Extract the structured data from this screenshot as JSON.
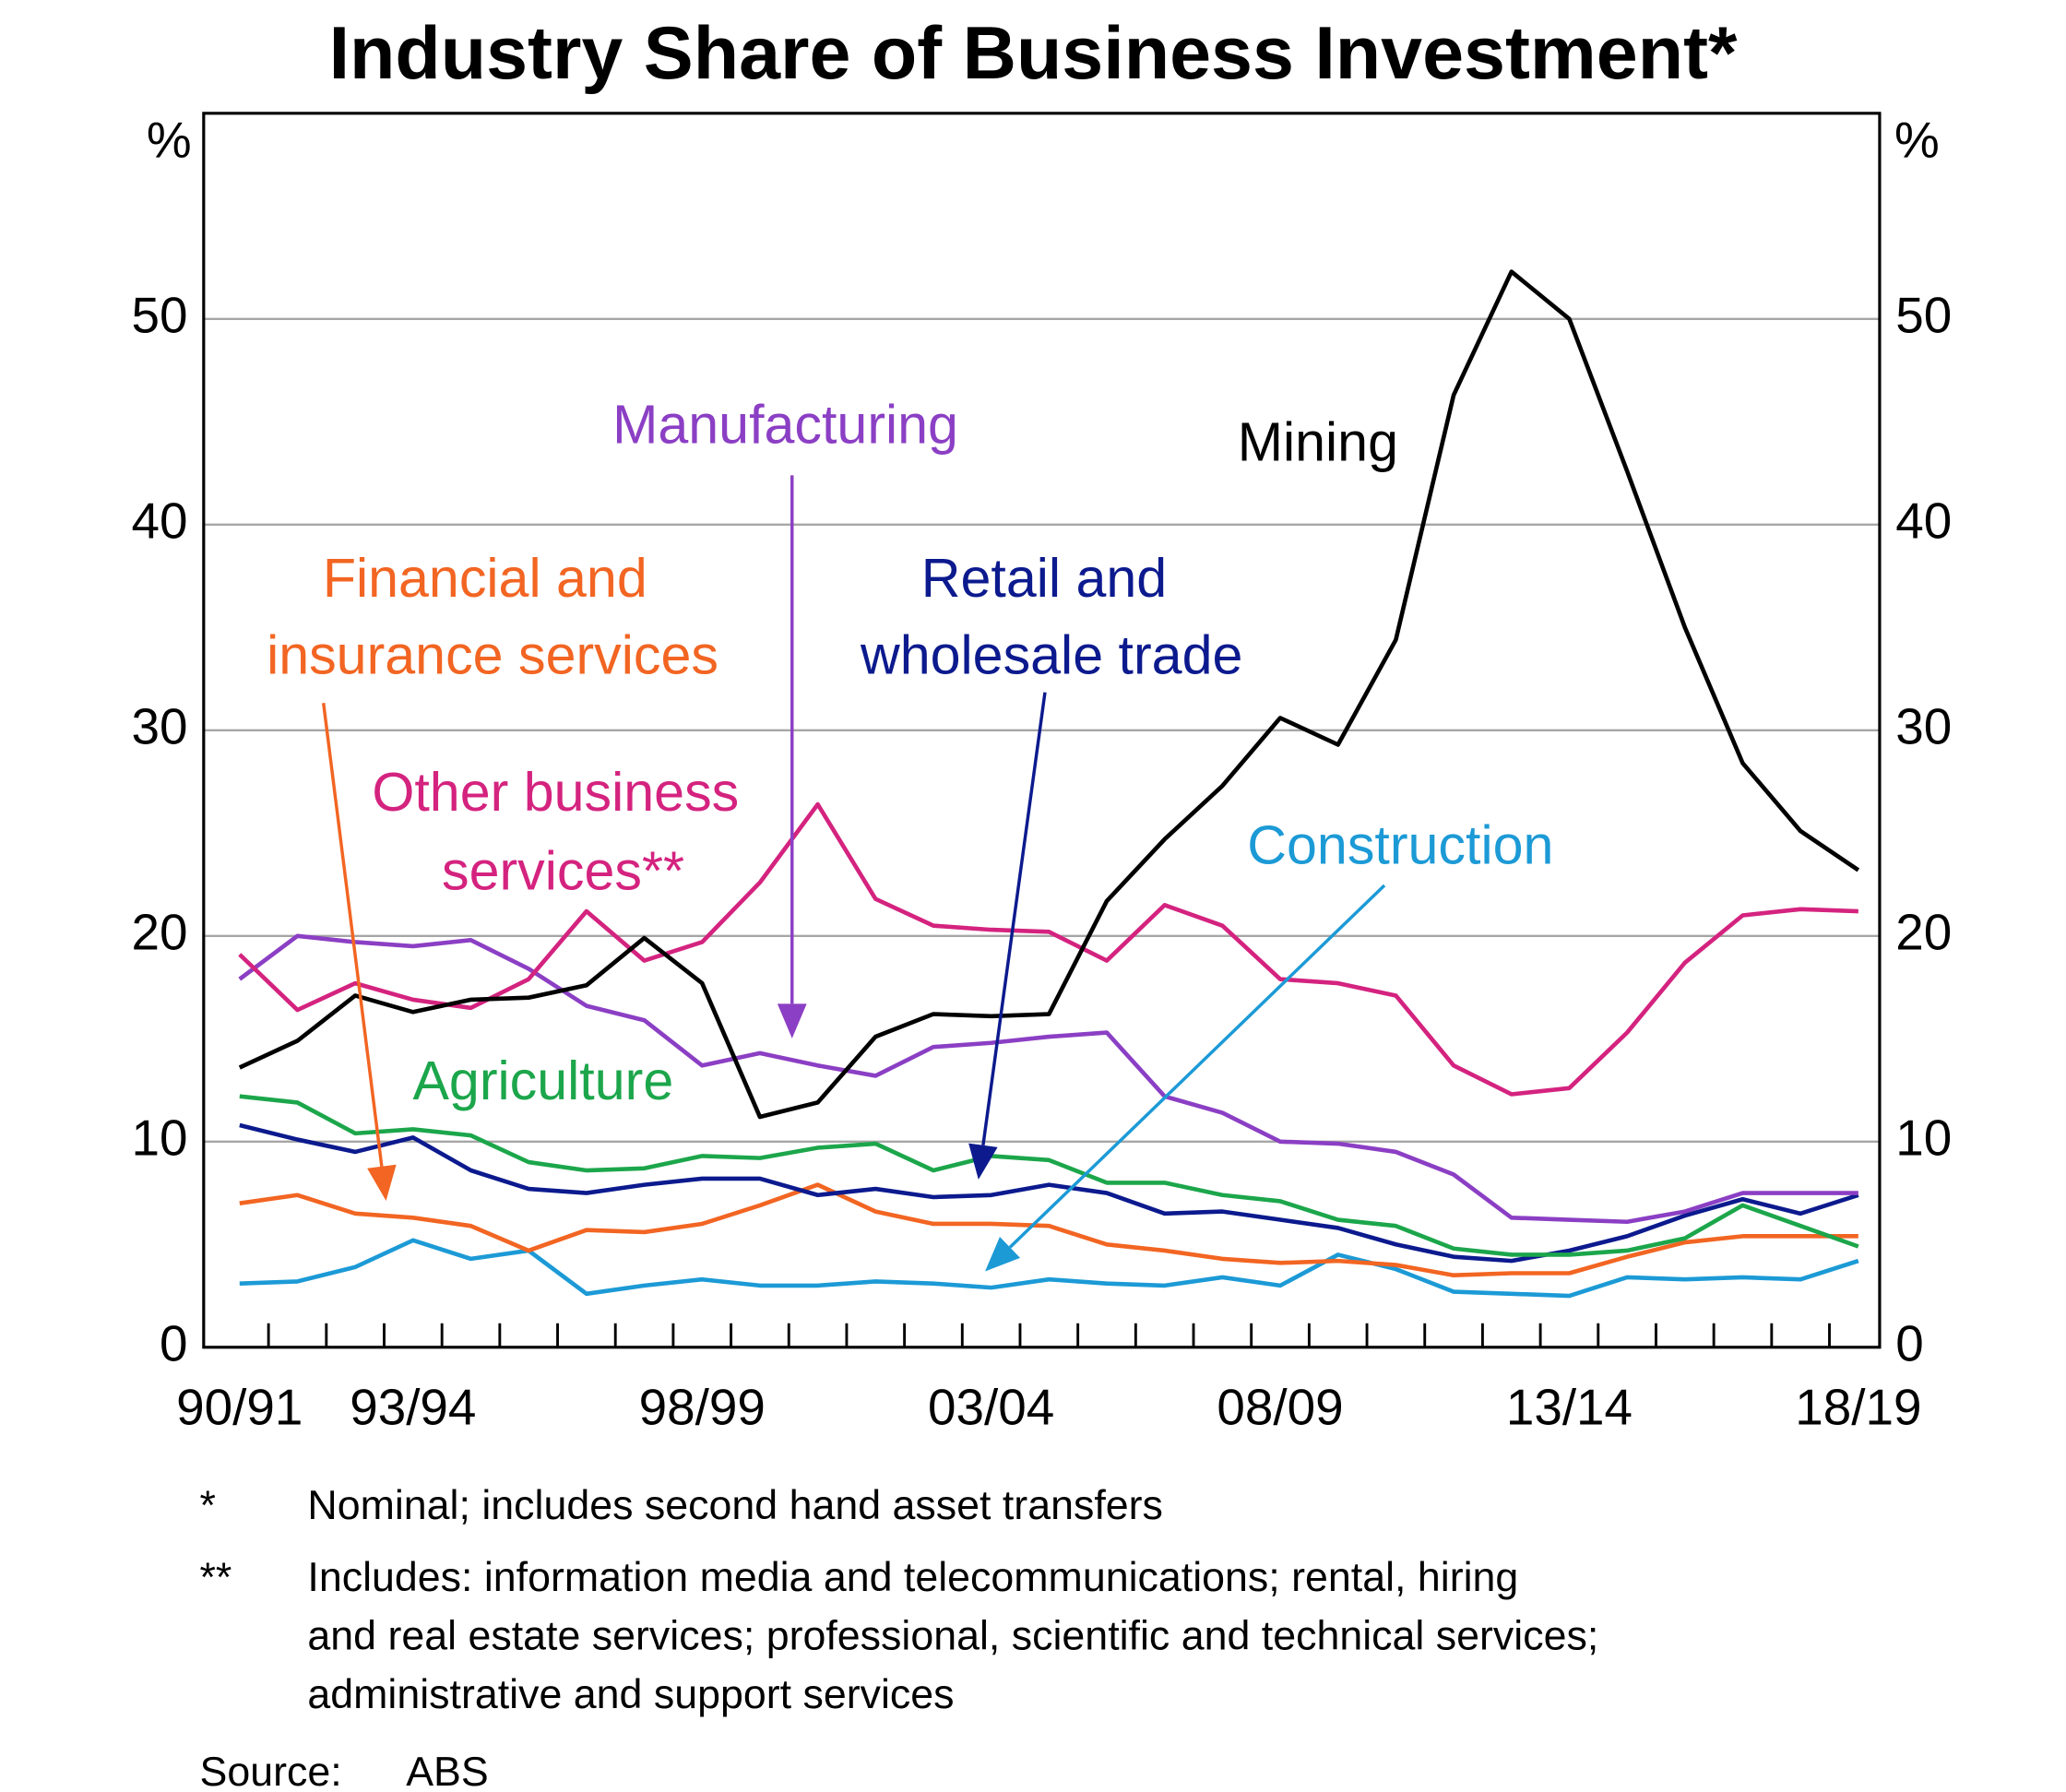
{
  "chart_data": {
    "type": "line",
    "title": "Industry Share of Business Investment*",
    "y_unit": "%",
    "categories": [
      "90/91",
      null,
      null,
      "93/94",
      null,
      null,
      null,
      null,
      "98/99",
      null,
      null,
      null,
      null,
      "03/04",
      null,
      null,
      null,
      null,
      "08/09",
      null,
      null,
      null,
      null,
      "13/14",
      null,
      null,
      null,
      null,
      "18/19"
    ],
    "ylim": [
      0,
      60
    ],
    "yticks": [
      0,
      10,
      20,
      30,
      40,
      50
    ],
    "grid": true,
    "series": [
      {
        "name": "Construction",
        "color": "#1c9ad6",
        "values": [
          3.1,
          3.2,
          3.9,
          5.2,
          4.3,
          4.7,
          2.6,
          3.0,
          3.3,
          3.0,
          3.0,
          3.2,
          3.1,
          2.9,
          3.3,
          3.1,
          3.0,
          3.4,
          3.0,
          4.5,
          3.8,
          2.7,
          2.6,
          2.5,
          3.4,
          3.3,
          3.4,
          3.3,
          4.2
        ]
      },
      {
        "name": "Financial and insurance services",
        "color": "#f26522",
        "values": [
          7.0,
          7.4,
          6.5,
          6.3,
          5.9,
          4.7,
          5.7,
          5.6,
          6.0,
          6.9,
          7.9,
          6.6,
          6.0,
          6.0,
          5.9,
          5.0,
          4.7,
          4.3,
          4.1,
          4.2,
          4.0,
          3.5,
          3.6,
          3.6,
          4.4,
          5.1,
          5.4,
          5.4,
          5.4
        ]
      },
      {
        "name": "Retail and wholesale trade",
        "color": "#0c1a8e",
        "values": [
          10.8,
          10.1,
          9.5,
          10.2,
          8.6,
          7.7,
          7.5,
          7.9,
          8.2,
          8.2,
          7.4,
          7.7,
          7.3,
          7.4,
          7.9,
          7.5,
          6.5,
          6.6,
          6.2,
          5.8,
          5.0,
          4.4,
          4.2,
          4.7,
          5.4,
          6.4,
          7.2,
          6.5,
          7.4
        ]
      },
      {
        "name": "Agriculture",
        "color": "#1ca64b",
        "values": [
          12.2,
          11.9,
          10.4,
          10.6,
          10.3,
          9.0,
          8.6,
          8.7,
          9.3,
          9.2,
          9.7,
          9.9,
          8.6,
          9.3,
          9.1,
          8.0,
          8.0,
          7.4,
          7.1,
          6.2,
          5.9,
          4.8,
          4.5,
          4.5,
          4.7,
          5.3,
          6.9,
          5.9,
          4.9
        ]
      },
      {
        "name": "Manufacturing",
        "color": "#8b3fc4",
        "values": [
          17.9,
          20.0,
          19.7,
          19.5,
          19.8,
          18.4,
          16.6,
          15.9,
          13.7,
          14.3,
          13.7,
          13.2,
          14.6,
          14.8,
          15.1,
          15.3,
          12.2,
          11.4,
          10.0,
          9.9,
          9.5,
          8.4,
          6.3,
          6.2,
          6.1,
          6.6,
          7.5,
          7.5,
          7.5
        ]
      },
      {
        "name": "Other business services**",
        "color": "#d4237f",
        "values": [
          19.1,
          16.4,
          17.7,
          16.9,
          16.5,
          17.9,
          21.2,
          18.8,
          19.7,
          22.6,
          26.4,
          21.8,
          20.5,
          20.3,
          20.2,
          18.8,
          21.5,
          20.5,
          17.9,
          17.7,
          17.1,
          13.7,
          12.3,
          12.6,
          15.3,
          18.7,
          21.0,
          21.3,
          21.2
        ]
      },
      {
        "name": "Mining",
        "color": "#000000",
        "values": [
          13.6,
          14.9,
          17.1,
          16.3,
          16.9,
          17.0,
          17.6,
          19.9,
          17.7,
          11.2,
          11.9,
          15.1,
          16.2,
          16.1,
          16.2,
          21.7,
          24.7,
          27.3,
          30.6,
          29.3,
          34.4,
          46.3,
          52.3,
          50.0,
          42.6,
          35.0,
          28.4,
          25.1,
          23.2
        ]
      }
    ],
    "notes": [
      {
        "mark": "*",
        "lines": [
          "Nominal; includes second hand asset transfers"
        ]
      },
      {
        "mark": "**",
        "lines": [
          "Includes: information media and telecommunications; rental, hiring",
          "and real estate services; professional, scientific and technical services;",
          "administrative and support services"
        ]
      }
    ],
    "source_label": "Source:",
    "source": "ABS"
  }
}
